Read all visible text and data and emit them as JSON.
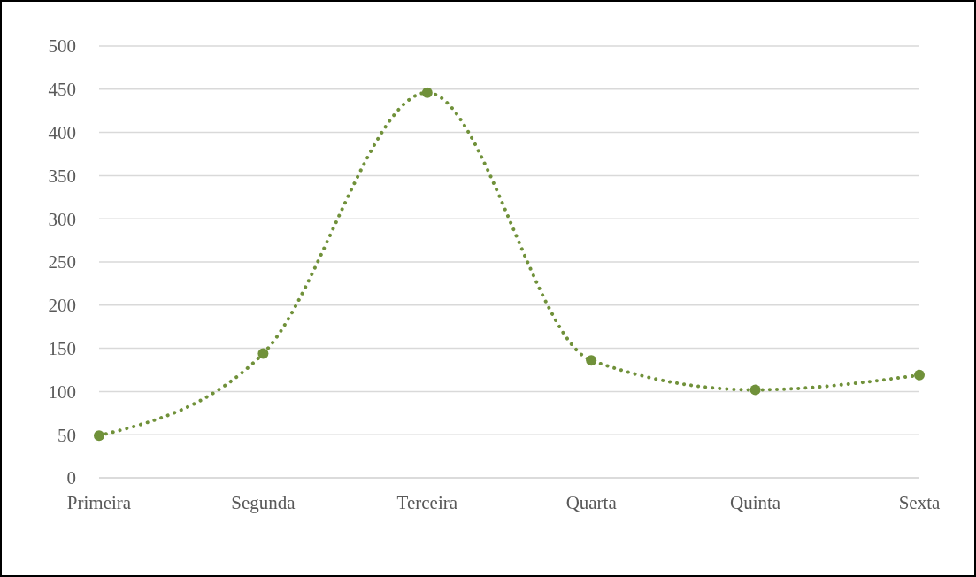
{
  "chart_data": {
    "type": "line",
    "categories": [
      "Primeira",
      "Segunda",
      "Terceira",
      "Quarta",
      "Quinta",
      "Sexta"
    ],
    "series": [
      {
        "color": "#70913a",
        "values": [
          49,
          144,
          446,
          136,
          102,
          119
        ]
      }
    ],
    "ylim": [
      0,
      500
    ],
    "yticks": [
      0,
      50,
      100,
      150,
      200,
      250,
      300,
      350,
      400,
      450,
      500
    ],
    "grid": "y",
    "legend": false,
    "marker": "circle",
    "line_style": "dotted"
  }
}
